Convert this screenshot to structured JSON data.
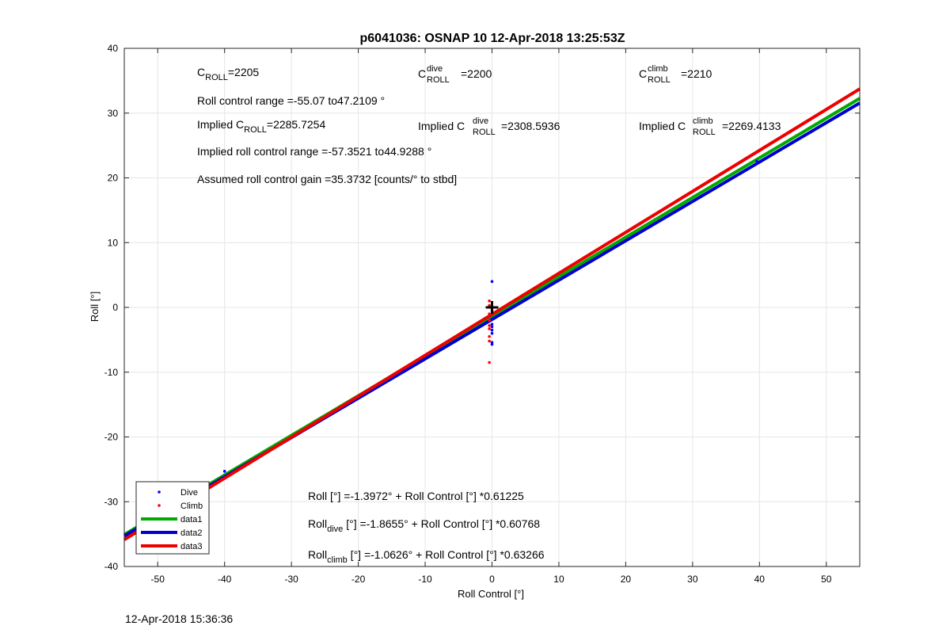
{
  "chart_data": {
    "type": "scatter",
    "title": "p6041036: OSNAP 10 12-Apr-2018 13:25:53Z",
    "xlabel": "Roll Control [°]",
    "ylabel": "Roll [°]",
    "xlim": [
      -55,
      55
    ],
    "ylim": [
      -40,
      40
    ],
    "xticks": [
      -50,
      -40,
      -30,
      -20,
      -10,
      0,
      10,
      20,
      30,
      40,
      50
    ],
    "yticks": [
      -40,
      -30,
      -20,
      -10,
      0,
      10,
      20,
      30,
      40
    ],
    "grid": true,
    "legend_position": "bottom-left",
    "series": [
      {
        "name": "Dive",
        "kind": "points",
        "color": "#0000ff",
        "points": [
          [
            -40,
            -25.3
          ],
          [
            0,
            4.0
          ],
          [
            0,
            -0.5
          ],
          [
            0,
            -1.8
          ],
          [
            0,
            -2.6
          ],
          [
            0,
            -3.0
          ],
          [
            0,
            -3.5
          ],
          [
            0,
            -4.0
          ],
          [
            0,
            -5.4
          ],
          [
            0,
            -5.7
          ],
          [
            39.6,
            22.6
          ]
        ]
      },
      {
        "name": "Climb",
        "kind": "points",
        "color": "#ff0000",
        "points": [
          [
            -0.4,
            1.0
          ],
          [
            -0.4,
            0.3
          ],
          [
            -0.4,
            -1.0
          ],
          [
            -0.4,
            -2.0
          ],
          [
            -0.4,
            -2.8
          ],
          [
            -0.4,
            -3.3
          ],
          [
            -0.4,
            -4.5
          ],
          [
            -0.4,
            -5.2
          ],
          [
            -0.4,
            -8.5
          ]
        ]
      },
      {
        "name": "data1",
        "kind": "line",
        "color": "#00aa00",
        "intercept": -1.3972,
        "slope": 0.61225
      },
      {
        "name": "data2",
        "kind": "line",
        "color": "#0000cc",
        "intercept": -1.8655,
        "slope": 0.60768
      },
      {
        "name": "data3",
        "kind": "line",
        "color": "#ee0000",
        "intercept": -1.0626,
        "slope": 0.63266
      }
    ],
    "marker_plus": [
      0,
      0
    ],
    "annotations": {
      "c_roll_main": "C",
      "c_roll_sub": "ROLL",
      "c_roll_value": "=2205",
      "c_dive_main": "C",
      "c_dive_sup": "dive",
      "c_dive_sub": "ROLL",
      "c_dive_value": "=2200",
      "c_climb_main": "C",
      "c_climb_sup": "climb",
      "c_climb_sub": "ROLL",
      "c_climb_value": "=2210",
      "roll_range": "Roll control range =-55.07 to47.2109 °",
      "implied_roll_prefix": "Implied C",
      "implied_roll_sub": "ROLL",
      "implied_roll_value": "=2285.7254",
      "implied_dive_prefix": "Implied C",
      "implied_dive_sup": "dive",
      "implied_dive_sub": "ROLL",
      "implied_dive_value": "=2308.5936",
      "implied_climb_prefix": "Implied C",
      "implied_climb_sup": "climb",
      "implied_climb_sub": "ROLL",
      "implied_climb_value": "=2269.4133",
      "implied_range": "Implied roll control range =-57.3521 to44.9288 °",
      "gain": "Assumed roll control gain =35.3732 [counts/° to stbd]",
      "fit_all": "Roll [°] =-1.3972° + Roll Control [°] *0.61225",
      "fit_dive_main": "Roll",
      "fit_dive_sub": "dive",
      "fit_dive_rest": " [°] =-1.8655° + Roll Control [°] *0.60768",
      "fit_climb_main": "Roll",
      "fit_climb_sub": "climb",
      "fit_climb_rest": " [°] =-1.0626° + Roll Control [°] *0.63266"
    }
  },
  "timestamp": "12-Apr-2018 15:36:36"
}
